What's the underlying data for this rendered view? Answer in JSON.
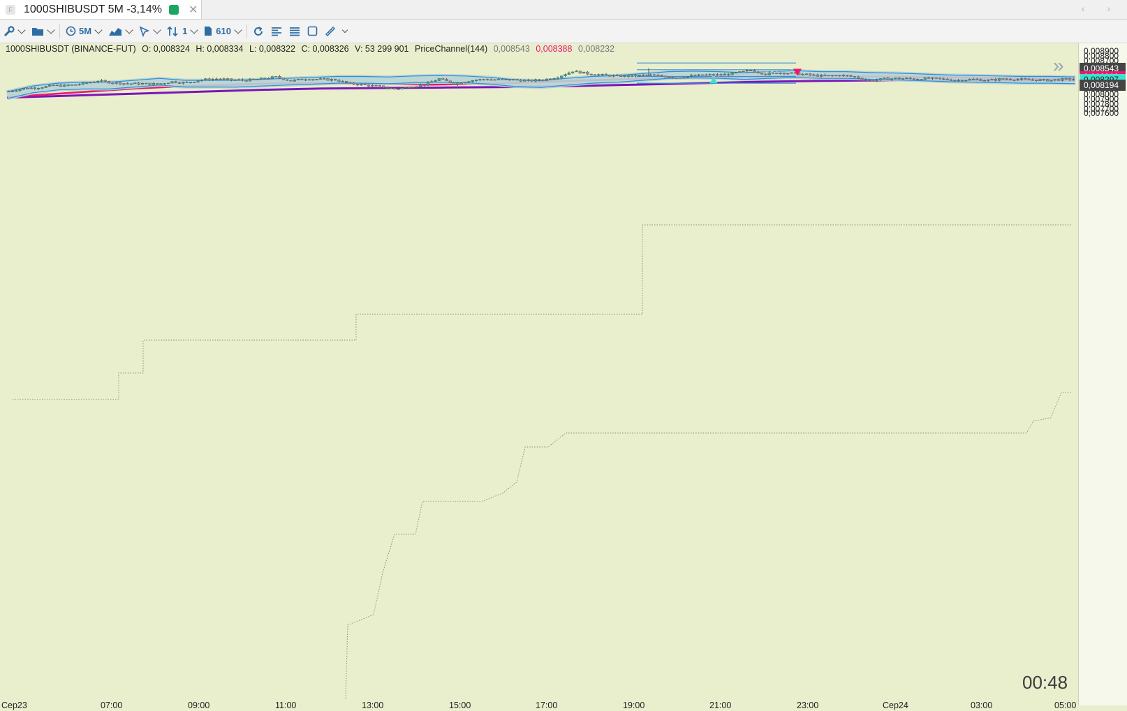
{
  "tab": {
    "title": "1000SHIBUSDT 5M -3,14%",
    "app_icon": "F",
    "close": "✕"
  },
  "nav": {
    "arrows": "‹ ›"
  },
  "toolbar": {
    "timeframe": "5M",
    "multiplier": "1",
    "bars": "610"
  },
  "info": {
    "symbol": "1000SHIBUSDT (BINANCE-FUT)",
    "open": "O: 0,008324",
    "high": "H: 0,008334",
    "low": "L: 0,008322",
    "close": "C: 0,008326",
    "volume": "V: 53 299 901",
    "indicator": "PriceChannel(144)",
    "pc_upper": "0,008543",
    "pc_middle": "0,008388",
    "pc_lower": "0,008232"
  },
  "colors": {
    "background": "#e9eecd",
    "bull": "#2bb596",
    "bear": "#9b9b9b",
    "ema_fast": "#2d8fd6",
    "ema_mid": "#e8196e",
    "ema_slow": "#7b16b8"
  },
  "price_axis": {
    "ticks": [
      "0,008900",
      "0,008800",
      "0,008700",
      "0,008600",
      "0,008500",
      "0,008400",
      "0,008300",
      "0,008200",
      "0,008100",
      "0,008000",
      "0,007900",
      "0,007800",
      "0,007700",
      "0,007600"
    ],
    "tags": [
      {
        "label": "0,008543",
        "color": "#454545"
      },
      {
        "label": "0,008369",
        "color": "#e8196e"
      },
      {
        "label": "0,008297",
        "color": "#3ee0d0"
      },
      {
        "label": "0,008194",
        "color": "#454545"
      }
    ]
  },
  "time_axis": {
    "labels": [
      "Сер23",
      "07:00",
      "09:00",
      "11:00",
      "13:00",
      "15:00",
      "17:00",
      "19:00",
      "21:00",
      "23:00",
      "Сер24",
      "03:00",
      "05:00"
    ]
  },
  "countdown": "00:48",
  "chart_data": {
    "type": "candlestick",
    "symbol": "1000SHIBUSDT",
    "interval": "5M",
    "ylim": [
      0.00755,
      0.00896
    ],
    "x_labels": [
      "Сер23",
      "07:00",
      "09:00",
      "11:00",
      "13:00",
      "15:00",
      "17:00",
      "19:00",
      "21:00",
      "23:00",
      "Сер24",
      "03:00",
      "05:00"
    ],
    "close_path": [
      0.00806,
      0.00812,
      0.00814,
      0.00818,
      0.00818,
      0.00822,
      0.00828,
      0.00824,
      0.00822,
      0.00822,
      0.00821,
      0.00826,
      0.00824,
      0.0083,
      0.00832,
      0.0083,
      0.00829,
      0.00832,
      0.00836,
      0.00828,
      0.00832,
      0.00831,
      0.0083,
      0.00822,
      0.00819,
      0.00816,
      0.00811,
      0.00815,
      0.0082,
      0.00832,
      0.00822,
      0.00828,
      0.00831,
      0.0083,
      0.0083,
      0.00828,
      0.0083,
      0.00836,
      0.00848,
      0.00843,
      0.0084,
      0.00838,
      0.00838,
      0.0084,
      0.00838,
      0.00835,
      0.00838,
      0.0084,
      0.0084,
      0.00844,
      0.0085,
      0.00842,
      0.00845,
      0.00843,
      0.0084,
      0.00838,
      0.0084,
      0.00836,
      0.00828,
      0.00832,
      0.00833,
      0.00832,
      0.00833,
      0.00831,
      0.00829,
      0.00831,
      0.00829,
      0.00832,
      0.00831,
      0.0083,
      0.00829,
      0.00831
    ],
    "ema_fast_path": [
      0.00798,
      0.0081,
      0.00816,
      0.00818,
      0.00818,
      0.00822,
      0.00826,
      0.00822,
      0.00822,
      0.00822,
      0.00824,
      0.00826,
      0.00828,
      0.0083,
      0.0083,
      0.00829,
      0.00831,
      0.00832,
      0.00831,
      0.00828,
      0.00823,
      0.00821,
      0.00826,
      0.0083,
      0.00832,
      0.00836,
      0.0084,
      0.00841,
      0.0084,
      0.00838,
      0.0084,
      0.00842,
      0.0084,
      0.0084,
      0.00838,
      0.00837,
      0.00835,
      0.00833,
      0.00832,
      0.00831,
      0.0083,
      0.0083,
      0.00829
    ],
    "ema_mid_path": [
      0.00794,
      0.008,
      0.00806,
      0.00812,
      0.00816,
      0.00819,
      0.00822,
      0.00823,
      0.00823,
      0.00821,
      0.0082,
      0.00822,
      0.00824,
      0.00827,
      0.0083,
      0.00832,
      0.00834,
      0.00835,
      0.00837,
      0.00838,
      0.00837,
      0.00836,
      0.00835,
      0.00834,
      0.00833,
      0.00833
    ],
    "ema_slow_path": [
      0.00793,
      0.00797,
      0.00801,
      0.00805,
      0.00809,
      0.00812,
      0.00813,
      0.00814,
      0.00815,
      0.00817,
      0.0082,
      0.00823,
      0.00826,
      0.00828,
      0.00829,
      0.00829,
      0.00829,
      0.00829
    ],
    "price_channel": {
      "period": 144,
      "upper": 0.008543,
      "middle": 0.008388,
      "lower": 0.008232
    },
    "last_price": 0.008297,
    "trendlines_price": [
      0.00865,
      0.00851,
      0.00837,
      0.00823
    ]
  }
}
